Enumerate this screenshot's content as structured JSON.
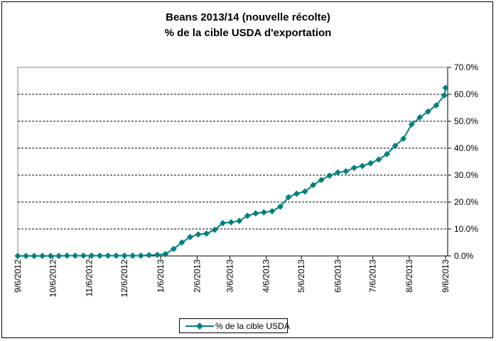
{
  "chart_data": {
    "type": "line",
    "title_line1": "Beans 2013/14 (nouvelle récolte)",
    "title_line2": "% de la cible USDA d'exportation",
    "xlabel": "",
    "ylabel": "",
    "ylim": [
      0,
      70
    ],
    "y_ticks": [
      "0.0%",
      "10.0%",
      "20.0%",
      "30.0%",
      "40.0%",
      "50.0%",
      "60.0%",
      "70.0%"
    ],
    "x_range_days": [
      0,
      365
    ],
    "x_ticks": [
      {
        "label": "9/6/2012",
        "day": 0
      },
      {
        "label": "10/6/2012",
        "day": 30
      },
      {
        "label": "11/6/2012",
        "day": 61
      },
      {
        "label": "12/6/2012",
        "day": 91
      },
      {
        "label": "1/6/2013",
        "day": 122
      },
      {
        "label": "2/6/2013",
        "day": 153
      },
      {
        "label": "3/6/2013",
        "day": 181
      },
      {
        "label": "4/6/2013",
        "day": 212
      },
      {
        "label": "5/6/2013",
        "day": 242
      },
      {
        "label": "6/6/2013",
        "day": 273
      },
      {
        "label": "7/6/2013",
        "day": 303
      },
      {
        "label": "8/6/2013",
        "day": 334
      },
      {
        "label": "9/6/2013",
        "day": 365
      }
    ],
    "grid": "horizontal dashed",
    "legend_position": "bottom",
    "series": [
      {
        "name": "% de la cible USDA",
        "color": "#008080",
        "x_days": [
          0,
          7,
          14,
          21,
          28,
          35,
          42,
          49,
          56,
          63,
          70,
          77,
          84,
          91,
          98,
          105,
          112,
          119,
          126,
          133,
          140,
          147,
          154,
          161,
          168,
          175,
          182,
          189,
          196,
          203,
          210,
          217,
          224,
          231,
          238,
          245,
          252,
          259,
          266,
          273,
          280,
          287,
          294,
          301,
          308,
          315,
          322,
          329,
          336,
          343,
          350,
          357,
          364,
          365
        ],
        "values": [
          0.0,
          0.0,
          0.0,
          0.0,
          0.0,
          0.0,
          0.1,
          0.1,
          0.1,
          0.1,
          0.1,
          0.1,
          0.1,
          0.1,
          0.1,
          0.1,
          0.3,
          0.4,
          0.7,
          2.6,
          5.0,
          7.0,
          8.0,
          8.3,
          9.7,
          12.2,
          12.5,
          13.0,
          14.9,
          15.8,
          16.2,
          16.6,
          18.3,
          21.8,
          23.1,
          23.9,
          26.3,
          28.2,
          29.8,
          31.0,
          31.4,
          32.7,
          33.4,
          34.4,
          35.8,
          37.8,
          40.9,
          43.5,
          48.8,
          51.4,
          53.6,
          55.9,
          59.6,
          62.4
        ]
      }
    ]
  }
}
